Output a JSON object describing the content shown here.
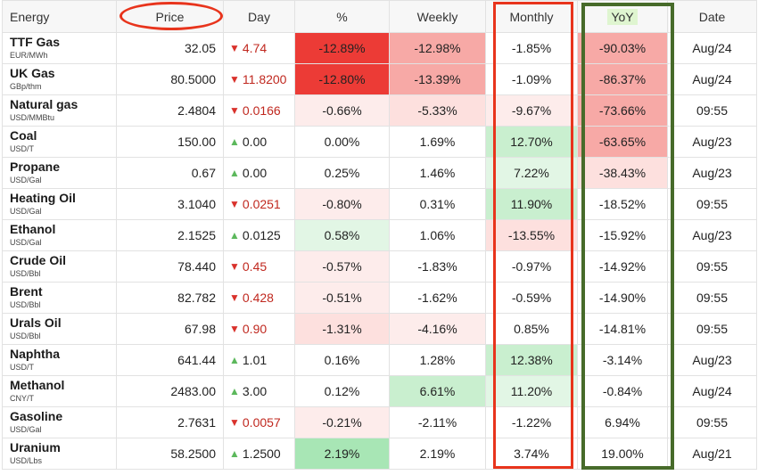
{
  "headers": {
    "energy": "Energy",
    "price": "Price",
    "day": "Day",
    "pct": "%",
    "weekly": "Weekly",
    "monthly": "Monthly",
    "yoy": "YoY",
    "date": "Date"
  },
  "colors": {
    "neg_strong": "#ec3b36",
    "neg_mid": "#f7a9a6",
    "neg_light": "#fde0de",
    "neg_faint": "#fdeceb",
    "pos_strong": "#a8e6b5",
    "pos_mid": "#c9efcf",
    "pos_light": "#e2f6e5",
    "annotation_red": "#e8341c",
    "annotation_green": "#476b2a"
  },
  "rows": [
    {
      "name": "TTF Gas",
      "unit": "EUR/MWh",
      "price": "32.05",
      "dir": "down",
      "day": "4.74",
      "pct": "-12.89%",
      "weekly": "-12.98%",
      "monthly": "-1.85%",
      "yoy": "-90.03%",
      "date": "Aug/24",
      "bg": {
        "pct": "neg_strong",
        "weekly": "neg_mid",
        "monthly": "",
        "yoy": "neg_mid"
      }
    },
    {
      "name": "UK Gas",
      "unit": "GBp/thm",
      "price": "80.5000",
      "dir": "down",
      "day": "11.8200",
      "pct": "-12.80%",
      "weekly": "-13.39%",
      "monthly": "-1.09%",
      "yoy": "-86.37%",
      "date": "Aug/24",
      "bg": {
        "pct": "neg_strong",
        "weekly": "neg_mid",
        "monthly": "",
        "yoy": "neg_mid"
      }
    },
    {
      "name": "Natural gas",
      "unit": "USD/MMBtu",
      "price": "2.4804",
      "dir": "down",
      "day": "0.0166",
      "pct": "-0.66%",
      "weekly": "-5.33%",
      "monthly": "-9.67%",
      "yoy": "-73.66%",
      "date": "09:55",
      "bg": {
        "pct": "neg_faint",
        "weekly": "neg_light",
        "monthly": "neg_faint",
        "yoy": "neg_mid"
      }
    },
    {
      "name": "Coal",
      "unit": "USD/T",
      "price": "150.00",
      "dir": "up",
      "day": "0.00",
      "pct": "0.00%",
      "weekly": "1.69%",
      "monthly": "12.70%",
      "yoy": "-63.65%",
      "date": "Aug/23",
      "bg": {
        "pct": "",
        "weekly": "",
        "monthly": "pos_mid",
        "yoy": "neg_mid"
      }
    },
    {
      "name": "Propane",
      "unit": "USD/Gal",
      "price": "0.67",
      "dir": "up",
      "day": "0.00",
      "pct": "0.25%",
      "weekly": "1.46%",
      "monthly": "7.22%",
      "yoy": "-38.43%",
      "date": "Aug/23",
      "bg": {
        "pct": "",
        "weekly": "",
        "monthly": "pos_light",
        "yoy": "neg_light"
      }
    },
    {
      "name": "Heating Oil",
      "unit": "USD/Gal",
      "price": "3.1040",
      "dir": "down",
      "day": "0.0251",
      "pct": "-0.80%",
      "weekly": "0.31%",
      "monthly": "11.90%",
      "yoy": "-18.52%",
      "date": "09:55",
      "bg": {
        "pct": "neg_faint",
        "weekly": "",
        "monthly": "pos_mid",
        "yoy": ""
      }
    },
    {
      "name": "Ethanol",
      "unit": "USD/Gal",
      "price": "2.1525",
      "dir": "up",
      "day": "0.0125",
      "pct": "0.58%",
      "weekly": "1.06%",
      "monthly": "-13.55%",
      "yoy": "-15.92%",
      "date": "Aug/23",
      "bg": {
        "pct": "pos_light",
        "weekly": "",
        "monthly": "neg_light",
        "yoy": ""
      }
    },
    {
      "name": "Crude Oil",
      "unit": "USD/Bbl",
      "price": "78.440",
      "dir": "down",
      "day": "0.45",
      "pct": "-0.57%",
      "weekly": "-1.83%",
      "monthly": "-0.97%",
      "yoy": "-14.92%",
      "date": "09:55",
      "bg": {
        "pct": "neg_faint",
        "weekly": "",
        "monthly": "",
        "yoy": ""
      }
    },
    {
      "name": "Brent",
      "unit": "USD/Bbl",
      "price": "82.782",
      "dir": "down",
      "day": "0.428",
      "pct": "-0.51%",
      "weekly": "-1.62%",
      "monthly": "-0.59%",
      "yoy": "-14.90%",
      "date": "09:55",
      "bg": {
        "pct": "neg_faint",
        "weekly": "",
        "monthly": "",
        "yoy": ""
      }
    },
    {
      "name": "Urals Oil",
      "unit": "USD/Bbl",
      "price": "67.98",
      "dir": "down",
      "day": "0.90",
      "pct": "-1.31%",
      "weekly": "-4.16%",
      "monthly": "0.85%",
      "yoy": "-14.81%",
      "date": "09:55",
      "bg": {
        "pct": "neg_light",
        "weekly": "neg_faint",
        "monthly": "",
        "yoy": ""
      }
    },
    {
      "name": "Naphtha",
      "unit": "USD/T",
      "price": "641.44",
      "dir": "up",
      "day": "1.01",
      "pct": "0.16%",
      "weekly": "1.28%",
      "monthly": "12.38%",
      "yoy": "-3.14%",
      "date": "Aug/23",
      "bg": {
        "pct": "",
        "weekly": "",
        "monthly": "pos_mid",
        "yoy": ""
      }
    },
    {
      "name": "Methanol",
      "unit": "CNY/T",
      "price": "2483.00",
      "dir": "up",
      "day": "3.00",
      "pct": "0.12%",
      "weekly": "6.61%",
      "monthly": "11.20%",
      "yoy": "-0.84%",
      "date": "Aug/24",
      "bg": {
        "pct": "",
        "weekly": "pos_mid",
        "monthly": "pos_light",
        "yoy": ""
      }
    },
    {
      "name": "Gasoline",
      "unit": "USD/Gal",
      "price": "2.7631",
      "dir": "down",
      "day": "0.0057",
      "pct": "-0.21%",
      "weekly": "-2.11%",
      "monthly": "-1.22%",
      "yoy": "6.94%",
      "date": "09:55",
      "bg": {
        "pct": "neg_faint",
        "weekly": "",
        "monthly": "",
        "yoy": ""
      }
    },
    {
      "name": "Uranium",
      "unit": "USD/Lbs",
      "price": "58.2500",
      "dir": "up",
      "day": "1.2500",
      "pct": "2.19%",
      "weekly": "2.19%",
      "monthly": "3.74%",
      "yoy": "19.00%",
      "date": "Aug/21",
      "bg": {
        "pct": "pos_strong",
        "weekly": "",
        "monthly": "",
        "yoy": ""
      }
    }
  ]
}
